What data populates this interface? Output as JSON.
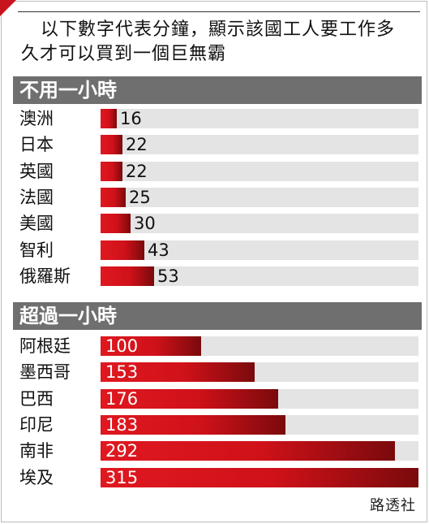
{
  "subtitle_line1": "以下數字代表分鐘，顯示該國工人要工作多",
  "subtitle_line2": "久才可以買到一個巨無霸",
  "source": "路透社",
  "colors": {
    "bar": "#d0121a",
    "header": "#6f6f6f",
    "track": "#e4e4e4"
  },
  "chart_data": [
    {
      "type": "bar",
      "orientation": "horizontal",
      "title": "不用一小時",
      "categories": [
        "澳洲",
        "日本",
        "英國",
        "法國",
        "美國",
        "智利",
        "俄羅斯"
      ],
      "values": [
        16,
        22,
        22,
        25,
        30,
        43,
        53
      ],
      "xlim": [
        0,
        315
      ]
    },
    {
      "type": "bar",
      "orientation": "horizontal",
      "title": "超過一小時",
      "categories": [
        "阿根廷",
        "墨西哥",
        "巴西",
        "印尼",
        "南非",
        "埃及"
      ],
      "values": [
        100,
        153,
        176,
        183,
        292,
        315
      ],
      "xlim": [
        0,
        315
      ]
    }
  ]
}
